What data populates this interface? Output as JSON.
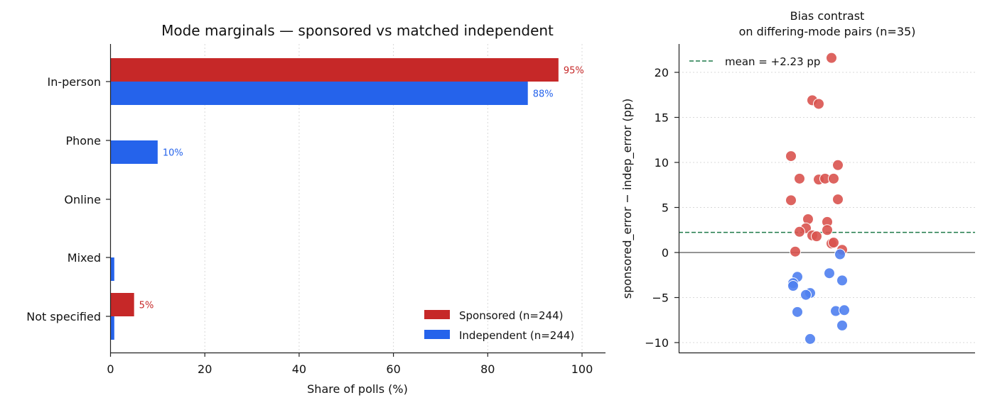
{
  "colors": {
    "sponsored": "#c62828",
    "independent": "#2563eb",
    "sponsored_point": "#d9534f",
    "independent_point": "#4f7fef",
    "mean_line": "#1f7a4a"
  },
  "chart_data": [
    {
      "type": "bar",
      "orientation": "horizontal",
      "title": "Mode marginals — sponsored vs matched independent",
      "xlabel": "Share of polls (%)",
      "ylabel": "",
      "xlim": [
        0,
        105
      ],
      "xticks": [
        "0",
        "20",
        "40",
        "60",
        "80",
        "100"
      ],
      "grid": "x, dotted",
      "legend_position": "bottom-right",
      "categories": [
        "In-person",
        "Phone",
        "Online",
        "Mixed",
        "Not specified"
      ],
      "series": [
        {
          "name": "Sponsored (n=244)",
          "key": "sponsored",
          "values": [
            95,
            0,
            0,
            0,
            5
          ],
          "labels": [
            "95%",
            "",
            "",
            "",
            "5%"
          ]
        },
        {
          "name": "Independent (n=244)",
          "key": "independent",
          "values": [
            88.5,
            10,
            0,
            0.8,
            0.8
          ],
          "labels": [
            "88%",
            "10%",
            "",
            "",
            ""
          ]
        }
      ]
    },
    {
      "type": "scatter",
      "title": "Bias contrast",
      "subtitle": "on differing-mode pairs (n=35)",
      "xlabel": "",
      "ylabel": "sponsored_error − indep_error (pp)",
      "ylim": [
        -11,
        23
      ],
      "yticks": [
        "−10",
        "−5",
        "0",
        "5",
        "10",
        "15",
        "20"
      ],
      "grid": "y, dotted",
      "legend_position": "top-left",
      "mean_label": "mean = +2.23 pp",
      "mean_value": 2.23,
      "points": [
        {
          "x": 0.02,
          "y": 21.6,
          "s": "pos"
        },
        {
          "x": -0.07,
          "y": 16.9,
          "s": "pos"
        },
        {
          "x": -0.04,
          "y": 16.5,
          "s": "pos"
        },
        {
          "x": -0.17,
          "y": 10.7,
          "s": "pos"
        },
        {
          "x": 0.05,
          "y": 9.7,
          "s": "pos"
        },
        {
          "x": -0.13,
          "y": 8.2,
          "s": "pos"
        },
        {
          "x": -0.04,
          "y": 8.1,
          "s": "pos"
        },
        {
          "x": -0.01,
          "y": 8.2,
          "s": "pos"
        },
        {
          "x": 0.03,
          "y": 8.2,
          "s": "pos"
        },
        {
          "x": -0.17,
          "y": 5.8,
          "s": "pos"
        },
        {
          "x": 0.05,
          "y": 5.9,
          "s": "pos"
        },
        {
          "x": -0.09,
          "y": 3.7,
          "s": "pos"
        },
        {
          "x": 0.0,
          "y": 3.4,
          "s": "pos"
        },
        {
          "x": -0.1,
          "y": 2.7,
          "s": "pos"
        },
        {
          "x": -0.13,
          "y": 2.3,
          "s": "pos"
        },
        {
          "x": 0.0,
          "y": 2.5,
          "s": "pos"
        },
        {
          "x": -0.07,
          "y": 1.9,
          "s": "pos"
        },
        {
          "x": -0.05,
          "y": 1.8,
          "s": "pos"
        },
        {
          "x": 0.02,
          "y": 1.0,
          "s": "pos"
        },
        {
          "x": 0.03,
          "y": 1.1,
          "s": "pos"
        },
        {
          "x": 0.07,
          "y": 0.3,
          "s": "pos"
        },
        {
          "x": -0.15,
          "y": 0.1,
          "s": "pos"
        },
        {
          "x": 0.06,
          "y": -0.2,
          "s": "neg"
        },
        {
          "x": 0.01,
          "y": -2.3,
          "s": "neg"
        },
        {
          "x": -0.14,
          "y": -2.7,
          "s": "neg"
        },
        {
          "x": -0.16,
          "y": -3.4,
          "s": "neg"
        },
        {
          "x": -0.16,
          "y": -3.7,
          "s": "neg"
        },
        {
          "x": 0.07,
          "y": -3.1,
          "s": "neg"
        },
        {
          "x": -0.08,
          "y": -4.5,
          "s": "neg"
        },
        {
          "x": -0.1,
          "y": -4.7,
          "s": "neg"
        },
        {
          "x": -0.14,
          "y": -6.6,
          "s": "neg"
        },
        {
          "x": 0.04,
          "y": -6.5,
          "s": "neg"
        },
        {
          "x": 0.08,
          "y": -6.4,
          "s": "neg"
        },
        {
          "x": 0.07,
          "y": -8.1,
          "s": "neg"
        },
        {
          "x": -0.08,
          "y": -9.6,
          "s": "neg"
        }
      ]
    }
  ]
}
